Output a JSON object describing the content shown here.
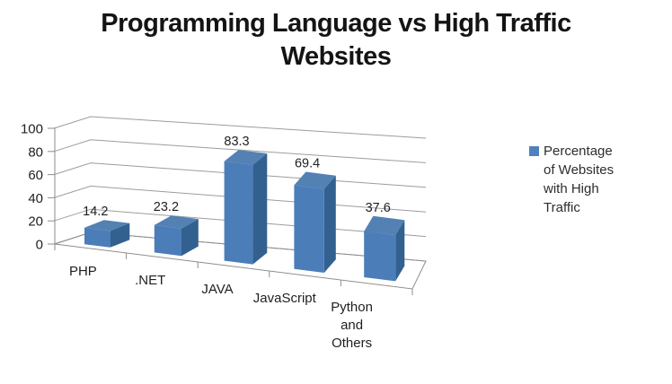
{
  "title": {
    "line1": "Programming Language vs High Traffic",
    "line2": "Websites"
  },
  "legend": {
    "label": "Percentage of Websites with High Traffic",
    "lines": [
      "Percentage",
      "of Websites",
      "with High",
      "Traffic"
    ],
    "swatch_color": "#4f81bd"
  },
  "chart_data": {
    "type": "bar",
    "projection": "3d-column",
    "title": "Programming Language vs High Traffic Websites",
    "categories": [
      "PHP",
      ".NET",
      "JAVA",
      "JavaScript",
      "Python and Others"
    ],
    "category_label_lines": [
      [
        "PHP"
      ],
      [
        ".NET"
      ],
      [
        "JAVA"
      ],
      [
        "JavaScript"
      ],
      [
        "Python",
        "and",
        "Others"
      ]
    ],
    "series": [
      {
        "name": "Percentage of Websites with High Traffic",
        "values": [
          14.2,
          23.2,
          83.3,
          69.4,
          37.6
        ]
      }
    ],
    "data_labels": [
      "14.2",
      "23.2",
      "83.3",
      "69.4",
      "37.6"
    ],
    "xlabel": "",
    "ylabel": "",
    "ylim": [
      0,
      100
    ],
    "yticks": [
      0,
      20,
      40,
      60,
      80,
      100
    ],
    "grid": true,
    "legend_position": "right",
    "colors": {
      "bar_front": "#4b7db9",
      "bar_top": "#5381b3",
      "bar_side": "#33618f",
      "gridline": "#9c9c9c",
      "axis_line": "#8e8e8e",
      "label_text": "#1f1f1f"
    }
  }
}
